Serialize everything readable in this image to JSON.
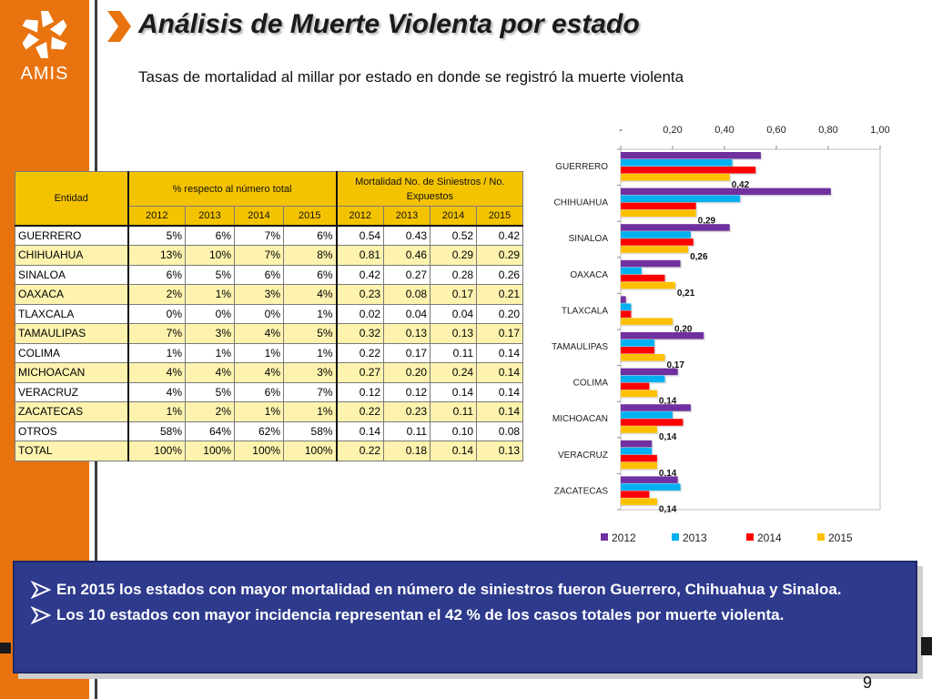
{
  "logo": {
    "text": "AMIS"
  },
  "title": "Análisis de Muerte Violenta por estado",
  "subtitle": "Tasas de mortalidad al millar por estado en donde se registró la muerte violenta",
  "table": {
    "col_entidad": "Entidad",
    "group_pct": "% respecto al número total",
    "group_mort": "Mortalidad No. de Siniestros / No. Expuestos",
    "years": [
      "2012",
      "2013",
      "2014",
      "2015"
    ],
    "rows": [
      {
        "name": "GUERRERO",
        "pct": [
          "5%",
          "6%",
          "7%",
          "6%"
        ],
        "mort": [
          "0.54",
          "0.43",
          "0.52",
          "0.42"
        ]
      },
      {
        "name": "CHIHUAHUA",
        "pct": [
          "13%",
          "10%",
          "7%",
          "8%"
        ],
        "mort": [
          "0.81",
          "0.46",
          "0.29",
          "0.29"
        ]
      },
      {
        "name": "SINALOA",
        "pct": [
          "6%",
          "5%",
          "6%",
          "6%"
        ],
        "mort": [
          "0.42",
          "0.27",
          "0.28",
          "0.26"
        ]
      },
      {
        "name": "OAXACA",
        "pct": [
          "2%",
          "1%",
          "3%",
          "4%"
        ],
        "mort": [
          "0.23",
          "0.08",
          "0.17",
          "0.21"
        ]
      },
      {
        "name": "TLAXCALA",
        "pct": [
          "0%",
          "0%",
          "0%",
          "1%"
        ],
        "mort": [
          "0.02",
          "0.04",
          "0.04",
          "0.20"
        ]
      },
      {
        "name": "TAMAULIPAS",
        "pct": [
          "7%",
          "3%",
          "4%",
          "5%"
        ],
        "mort": [
          "0.32",
          "0.13",
          "0.13",
          "0.17"
        ]
      },
      {
        "name": "COLIMA",
        "pct": [
          "1%",
          "1%",
          "1%",
          "1%"
        ],
        "mort": [
          "0.22",
          "0.17",
          "0.11",
          "0.14"
        ]
      },
      {
        "name": "MICHOACAN",
        "pct": [
          "4%",
          "4%",
          "4%",
          "3%"
        ],
        "mort": [
          "0.27",
          "0.20",
          "0.24",
          "0.14"
        ]
      },
      {
        "name": "VERACRUZ",
        "pct": [
          "4%",
          "5%",
          "6%",
          "7%"
        ],
        "mort": [
          "0.12",
          "0.12",
          "0.14",
          "0.14"
        ]
      },
      {
        "name": "ZACATECAS",
        "pct": [
          "1%",
          "2%",
          "1%",
          "1%"
        ],
        "mort": [
          "0.22",
          "0.23",
          "0.11",
          "0.14"
        ]
      },
      {
        "name": "OTROS",
        "pct": [
          "58%",
          "64%",
          "62%",
          "58%"
        ],
        "mort": [
          "0.14",
          "0.11",
          "0.10",
          "0.08"
        ]
      },
      {
        "name": "TOTAL",
        "pct": [
          "100%",
          "100%",
          "100%",
          "100%"
        ],
        "mort": [
          "0.22",
          "0.18",
          "0.14",
          "0.13"
        ]
      }
    ]
  },
  "chart_data": {
    "type": "bar",
    "orientation": "horizontal",
    "categories": [
      "GUERRERO",
      "CHIHUAHUA",
      "SINALOA",
      "OAXACA",
      "TLAXCALA",
      "TAMAULIPAS",
      "COLIMA",
      "MICHOACAN",
      "VERACRUZ",
      "ZACATECAS"
    ],
    "series": [
      {
        "name": "2012",
        "color": "#7030a0",
        "values": [
          0.54,
          0.81,
          0.42,
          0.23,
          0.02,
          0.32,
          0.22,
          0.27,
          0.12,
          0.22
        ]
      },
      {
        "name": "2013",
        "color": "#00b0f0",
        "values": [
          0.43,
          0.46,
          0.27,
          0.08,
          0.04,
          0.13,
          0.17,
          0.2,
          0.12,
          0.23
        ]
      },
      {
        "name": "2014",
        "color": "#ff0000",
        "values": [
          0.52,
          0.29,
          0.28,
          0.17,
          0.04,
          0.13,
          0.11,
          0.24,
          0.14,
          0.11
        ]
      },
      {
        "name": "2015",
        "color": "#ffc000",
        "values": [
          0.42,
          0.29,
          0.26,
          0.21,
          0.2,
          0.17,
          0.14,
          0.14,
          0.14,
          0.14
        ]
      }
    ],
    "data_labels": [
      "0,42",
      "0,29",
      "0,26",
      "0,21",
      "0,20",
      "0,17",
      "0,14",
      "0,14",
      "0,14",
      "0,14"
    ],
    "xlim": [
      0,
      1.0
    ],
    "x_ticks": [
      "-",
      "0,20",
      "0,40",
      "0,60",
      "0,80",
      "1,00"
    ],
    "axis_position": "top",
    "legend_position": "bottom"
  },
  "bullets": [
    "En 2015 los estados con mayor mortalidad en número de siniestros fueron Guerrero, Chihuahua y Sinaloa.",
    "Los 10 estados con mayor incidencia representan el 42 % de los casos totales por muerte violenta."
  ],
  "page_number": "9",
  "colors": {
    "sidebar": "#e8730f",
    "panel": "#2e3a8c",
    "table_header": "#f4c300",
    "table_alt_row": "#fdf3ae"
  }
}
